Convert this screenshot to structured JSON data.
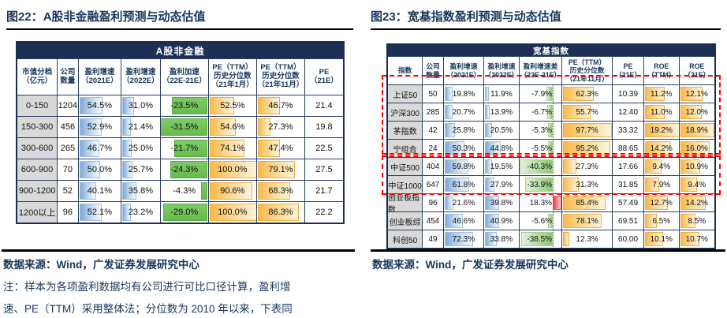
{
  "colors": {
    "navy_text": "#17365d",
    "banner_bg": "#1d2f55",
    "label_bg": "#d9d9d9",
    "bar_blue": "#7fa9d9",
    "bar_green": "#68ba4d",
    "bar_orange": "#fbb84d",
    "bar_red": "#ee3f43",
    "highlight_dash": "#ff0000"
  },
  "left_panel": {
    "title_prefix": "图22：",
    "title": "A股非金融盈利预测与动态估值",
    "table": {
      "banner": "A股非金融",
      "columns": [
        "市值分档\n（亿元）",
        "公司\n数量",
        "盈利增速\n（2021E）",
        "盈利增速\n（2022E）",
        "盈利加速\n（22E-21E）",
        "PE（TTM）\n历史分位数\n（21年1月）",
        "PE（TTM）\n历史分位数\n（21年11月）",
        "PE\n（21E）"
      ],
      "rows": [
        [
          "0-150",
          "1204",
          "54.5%",
          "31.0%",
          "-23.5%",
          "52.5%",
          "46.7%",
          "21.4"
        ],
        [
          "150-300",
          "456",
          "52.9%",
          "21.4%",
          "-31.5%",
          "54.6%",
          "27.3%",
          "19.8"
        ],
        [
          "300-600",
          "265",
          "46.7%",
          "25.0%",
          "-21.7%",
          "74.1%",
          "47.4%",
          "22.5"
        ],
        [
          "600-900",
          "70",
          "50.0%",
          "25.7%",
          "-24.3%",
          "100.0%",
          "79.1%",
          "27.5"
        ],
        [
          "900-1200",
          "52",
          "40.1%",
          "35.8%",
          "-4.3%",
          "90.6%",
          "68.3%",
          "21.7"
        ],
        [
          "1200以上",
          "96",
          "52.1%",
          "23.2%",
          "-29.0%",
          "100.0%",
          "86.3%",
          "22.2"
        ]
      ]
    },
    "source": "数据来源：Wind，广发证券发展研究中心",
    "note_line1": "注：样本为各项盈利数据均有公司进行可比口径计算，盈利增",
    "note_line2": "速、PE（TTM）采用整体法；分位数为 2010 年以来，下表同"
  },
  "right_panel": {
    "title_prefix": "图23：",
    "title": "宽基指数盈利预测与动态估值",
    "table": {
      "banner": "宽基指数",
      "columns": [
        "指数",
        "公司\n数量",
        "盈利增速\n（2021E）",
        "盈利增速\n（2022E）",
        "盈利增速差\n（22E-21E）",
        "PE（TTM）\n历史分位数\n（21年11月）",
        "PE\n（21E）",
        "ROE\n（TTM）",
        "ROE\n（21E）"
      ],
      "rows": [
        [
          "上证50",
          "50",
          "19.8%",
          "11.9%",
          "-7.9%",
          "62.3%",
          "10.39",
          "11.2%",
          "12.1%"
        ],
        [
          "沪深300",
          "285",
          "20.7%",
          "13.9%",
          "-6.7%",
          "55.7%",
          "12.40",
          "11.0%",
          "12.0%"
        ],
        [
          "茅指数",
          "42",
          "25.8%",
          "20.5%",
          "-5.3%",
          "97.7%",
          "33.32",
          "19.2%",
          "18.9%"
        ],
        [
          "宁组合",
          "24",
          "50.3%",
          "44.8%",
          "-5.5%",
          "95.2%",
          "88.65",
          "14.2%",
          "16.0%"
        ],
        [
          "中证500",
          "404",
          "59.8%",
          "19.5%",
          "-40.3%",
          "27.3%",
          "17.66",
          "9.4%",
          "10.9%"
        ],
        [
          "中证1000",
          "647",
          "61.8%",
          "27.9%",
          "-33.9%",
          "31.3%",
          "31.85",
          "7.9%",
          "9.4%"
        ],
        [
          "创业板指数",
          "96",
          "21.6%",
          "39.8%",
          "18.3%",
          "85.4%",
          "57.49",
          "12.7%",
          "14.2%"
        ],
        [
          "创业板综",
          "454",
          "46.6%",
          "40.9%",
          "-5.6%",
          "78.1%",
          "69.51",
          "6.5%",
          "8.5%"
        ],
        [
          "科创50",
          "49",
          "72.3%",
          "33.8%",
          "-38.5%",
          "12.3%",
          "60.00",
          "10.1%",
          "10.7%"
        ]
      ]
    },
    "source": "数据来源：Wind，广发证券发展研究中心"
  }
}
